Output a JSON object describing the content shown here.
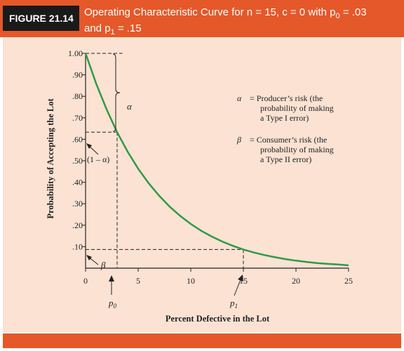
{
  "figure": {
    "label": "FIGURE 21.14",
    "title_line1": "Operating Characteristic Curve for n = 15, c = 0 with p",
    "title_sub0": "0",
    "title_mid": " = .03",
    "title_line2": "and p",
    "title_sub1": "1",
    "title_end": " = .15"
  },
  "colors": {
    "header": "#e5582a",
    "panel": "#fbe2d3",
    "curve": "#2e9a47",
    "label_bg": "#1a1a1a"
  },
  "legend": {
    "alpha_symbol": "α",
    "alpha_lines": [
      "= Producer’s risk (the",
      "probability of making",
      "a Type I error)"
    ],
    "beta_symbol": "β",
    "beta_lines": [
      "= Consumer’s risk (the",
      "probability of making",
      "a Type II error)"
    ]
  },
  "annotations": {
    "alpha_brace_label": "α",
    "one_minus_alpha": "(1 – α)",
    "beta_label": "β",
    "p0_label": "p",
    "p0_sub": "0",
    "p1_label": "p",
    "p1_sub": "1"
  },
  "chart_data": {
    "type": "line",
    "title": "Operating Characteristic Curve for n = 15, c = 0 with p0 = .03 and p1 = .15",
    "xlabel": "Percent Defective in the Lot",
    "ylabel": "Probability of Accepting the Lot",
    "xlim": [
      0,
      25
    ],
    "ylim": [
      0,
      1
    ],
    "x_ticks": [
      0,
      5,
      10,
      15,
      20,
      25
    ],
    "x_tick_labels": [
      "0",
      "5",
      "10",
      "15",
      "20",
      "25"
    ],
    "y_ticks": [
      0.1,
      0.2,
      0.3,
      0.4,
      0.5,
      0.6,
      0.7,
      0.8,
      0.9,
      1.0
    ],
    "y_tick_labels": [
      ".10",
      ".20",
      ".30",
      ".40",
      ".50",
      ".60",
      ".70",
      ".80",
      ".90",
      "1.00"
    ],
    "grid": false,
    "series": [
      {
        "x": [
          0,
          1,
          2,
          3,
          4,
          5,
          6,
          7,
          8,
          9,
          10,
          11,
          12,
          13,
          14,
          15,
          16,
          17,
          18,
          19,
          20,
          21,
          22,
          23,
          24,
          25
        ],
        "values": [
          1.0,
          0.86,
          0.739,
          0.633,
          0.542,
          0.463,
          0.395,
          0.337,
          0.286,
          0.243,
          0.206,
          0.174,
          0.147,
          0.124,
          0.104,
          0.087,
          0.073,
          0.061,
          0.051,
          0.042,
          0.035,
          0.029,
          0.024,
          0.02,
          0.017,
          0.013
        ]
      }
    ],
    "reference_points": [
      {
        "name": "p0",
        "x": 3,
        "y": 0.633
      },
      {
        "name": "p1",
        "x": 15,
        "y": 0.087
      }
    ]
  }
}
